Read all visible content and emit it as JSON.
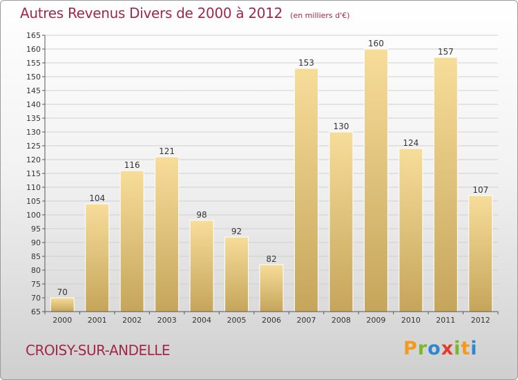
{
  "title": "Autres Revenus Divers de 2000 à 2012",
  "subtitle": "(en milliers d'€)",
  "commune": "CROISY-SUR-ANDELLE",
  "brand": {
    "text": "Proxiti",
    "letters": [
      "P",
      "r",
      "o",
      "x",
      "i",
      "t",
      "i"
    ],
    "colors": [
      "#f39a1e",
      "#7ab829",
      "#2e86d1",
      "#e53a2e",
      "#7ab829",
      "#f39a1e",
      "#2e86d1"
    ]
  },
  "colors": {
    "title": "#a0284a",
    "bar_top": "#f7dd9a",
    "bar_bottom": "#c5a55a",
    "grid": "#cfcfcf"
  },
  "chart_data": {
    "type": "bar",
    "categories": [
      "2000",
      "2001",
      "2002",
      "2003",
      "2004",
      "2005",
      "2006",
      "2007",
      "2008",
      "2009",
      "2010",
      "2011",
      "2012"
    ],
    "values": [
      70,
      104,
      116,
      121,
      98,
      92,
      82,
      153,
      130,
      160,
      124,
      157,
      107
    ],
    "ylim": [
      65,
      165
    ],
    "yticks": [
      65,
      70,
      75,
      80,
      85,
      90,
      95,
      100,
      105,
      110,
      115,
      120,
      125,
      130,
      135,
      140,
      145,
      150,
      155,
      160,
      165
    ],
    "grid": true,
    "xlabel": "",
    "ylabel": ""
  }
}
